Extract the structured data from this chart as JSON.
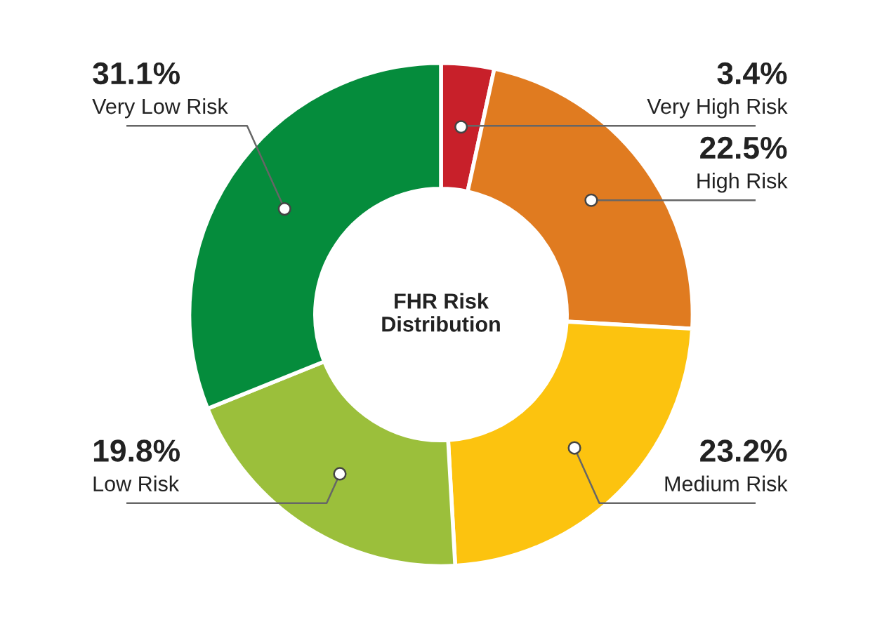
{
  "chart_data": {
    "type": "donut",
    "title": "FHR Risk\nDistribution",
    "categories": [
      "Very High Risk",
      "High Risk",
      "Medium Risk",
      "Low Risk",
      "Very Low Risk"
    ],
    "values": [
      3.4,
      22.5,
      23.2,
      19.8,
      31.1
    ],
    "value_labels": [
      "3.4%",
      "22.5%",
      "23.2%",
      "19.8%",
      "31.1%"
    ],
    "colors": [
      "#c8202a",
      "#e07b20",
      "#fcc30f",
      "#9bbf3b",
      "#058c3c"
    ]
  }
}
